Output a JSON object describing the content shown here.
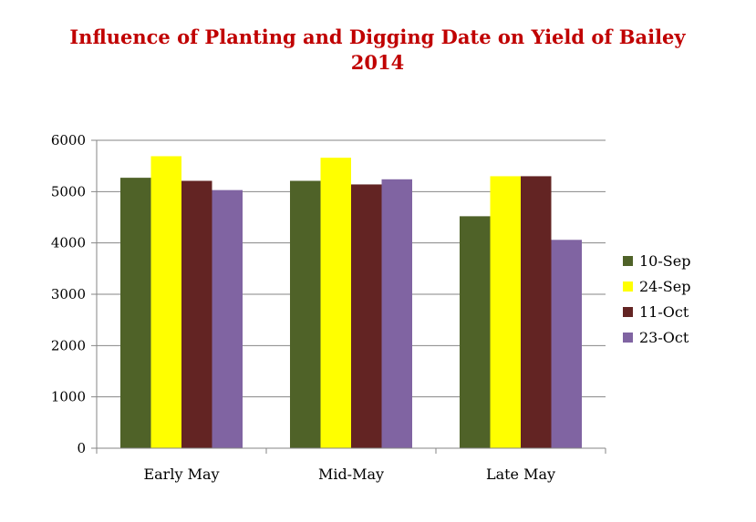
{
  "chart_data": {
    "type": "bar",
    "title": "Influence of Planting and Digging Date on Yield of Bailey",
    "subtitle": "2014",
    "xlabel": "",
    "ylabel": "",
    "categories": [
      "Early May",
      "Mid-May",
      "Late May"
    ],
    "ylim": [
      0,
      6000
    ],
    "yticks": [
      0,
      1000,
      2000,
      3000,
      4000,
      5000,
      6000
    ],
    "grid": true,
    "legend_position": "right",
    "series": [
      {
        "name": "10-Sep",
        "color": "#4f6228",
        "values": [
          5270,
          5210,
          4520
        ]
      },
      {
        "name": "24-Sep",
        "color": "#ffff00",
        "values": [
          5690,
          5660,
          5300
        ]
      },
      {
        "name": "11-Oct",
        "color": "#632423",
        "values": [
          5210,
          5140,
          5300
        ]
      },
      {
        "name": "23-Oct",
        "color": "#8064a2",
        "values": [
          5030,
          5240,
          4060
        ]
      }
    ]
  }
}
